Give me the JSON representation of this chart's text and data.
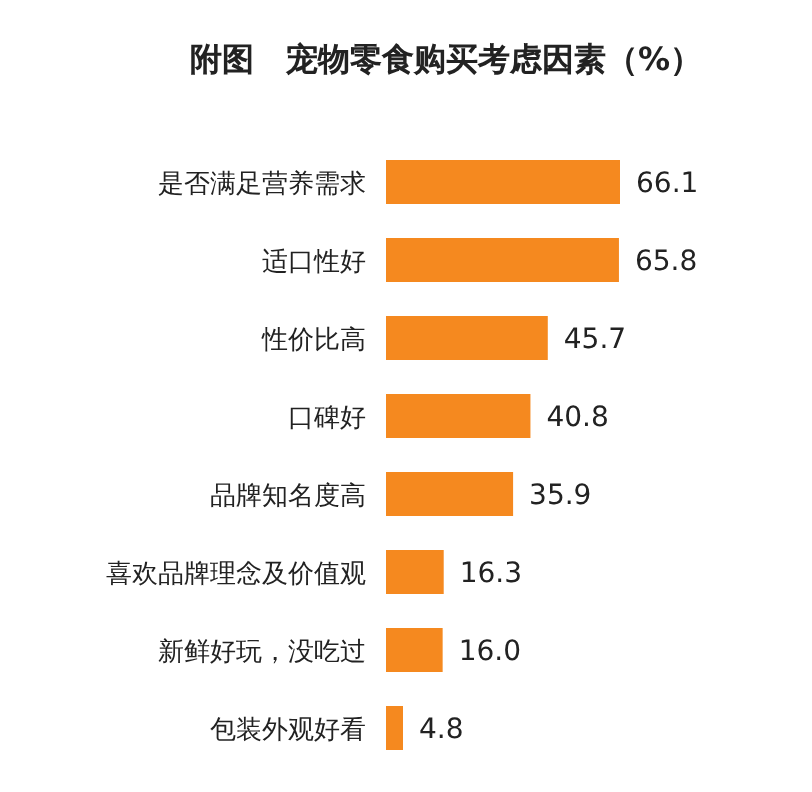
{
  "chart_data": {
    "type": "bar",
    "orientation": "horizontal",
    "title": "附图　宠物零食购买考虑因素（%）",
    "categories": [
      "是否满足营养需求",
      "适口性好",
      "性价比高",
      "口碑好",
      "品牌知名度高",
      "喜欢品牌理念及价值观",
      "新鲜好玩，没吃过",
      "包装外观好看"
    ],
    "values": [
      66.1,
      65.8,
      45.7,
      40.8,
      35.9,
      16.3,
      16.0,
      4.8
    ],
    "value_labels": [
      "66.1",
      "65.8",
      "45.7",
      "40.8",
      "35.9",
      "16.3",
      "16.0",
      "4.8"
    ],
    "color": "#f5891f"
  }
}
